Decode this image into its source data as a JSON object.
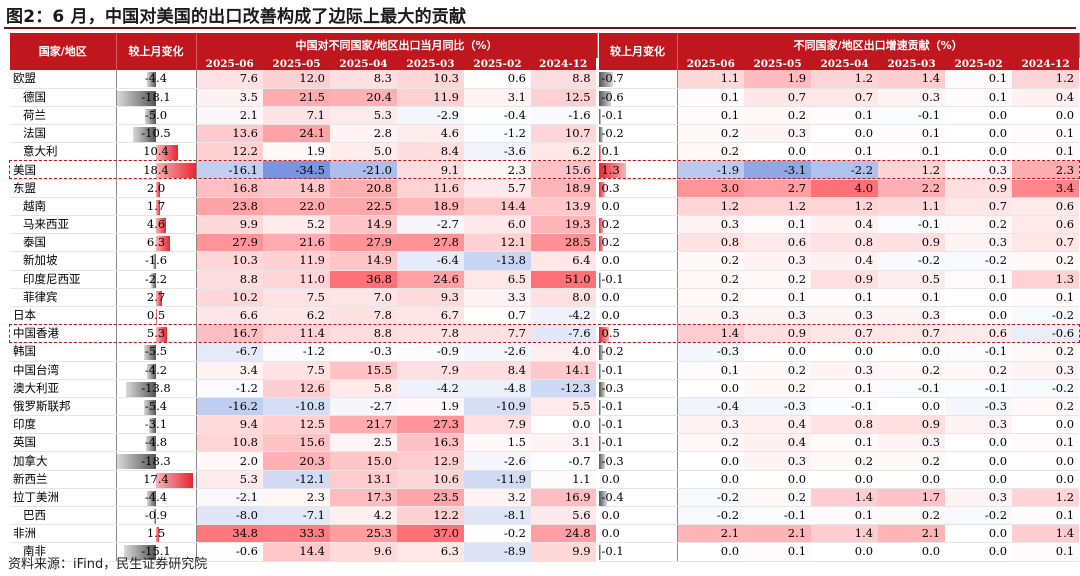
{
  "title": "图2：6 月，中国对美国的出口改善构成了边际上最大的贡献",
  "source": "资料来源：iFind，民生证券研究院",
  "header": {
    "region_col": "国家/地区",
    "change_col_left": "较上月变化",
    "group_left": "中国对不同国家/地区出口当月同比（%）",
    "change_col_right": "较上月变化",
    "group_right": "不同国家/地区出口增速贡献（%）",
    "dates": [
      "2025-06",
      "2025-05",
      "2025-04",
      "2025-03",
      "2025-02",
      "2024-12"
    ]
  },
  "colors": {
    "accent": "#c0161e",
    "pos": "#f4a3a6",
    "neg": "#9fb5dd"
  },
  "rows": [
    {
      "name": "欧盟",
      "sub": false,
      "chg": "-4.4",
      "yoy": [
        "7.6",
        "12.0",
        "8.3",
        "10.3",
        "0.6",
        "8.8"
      ],
      "chg2": "-0.7",
      "ctr": [
        "1.1",
        "1.9",
        "1.2",
        "1.4",
        "0.1",
        "1.2"
      ]
    },
    {
      "name": "德国",
      "sub": true,
      "chg": "-18.1",
      "yoy": [
        "3.5",
        "21.5",
        "20.4",
        "11.9",
        "3.1",
        "12.5"
      ],
      "chg2": "-0.6",
      "ctr": [
        "0.1",
        "0.7",
        "0.7",
        "0.3",
        "0.1",
        "0.4"
      ]
    },
    {
      "name": "荷兰",
      "sub": true,
      "chg": "-5.0",
      "yoy": [
        "2.1",
        "7.1",
        "5.3",
        "-2.9",
        "-0.4",
        "-1.6"
      ],
      "chg2": "-0.1",
      "ctr": [
        "0.1",
        "0.2",
        "0.1",
        "-0.1",
        "0.0",
        "0.0"
      ]
    },
    {
      "name": "法国",
      "sub": true,
      "chg": "-10.5",
      "yoy": [
        "13.6",
        "24.1",
        "2.8",
        "4.6",
        "-1.2",
        "10.7"
      ],
      "chg2": "-0.2",
      "ctr": [
        "0.2",
        "0.3",
        "0.0",
        "0.1",
        "0.0",
        "0.1"
      ]
    },
    {
      "name": "意大利",
      "sub": true,
      "chg": "10.4",
      "yoy": [
        "12.2",
        "1.9",
        "5.0",
        "8.4",
        "-3.6",
        "6.2"
      ],
      "chg2": "0.1",
      "ctr": [
        "0.2",
        "0.0",
        "0.1",
        "0.1",
        "0.0",
        "0.1"
      ]
    },
    {
      "name": "美国",
      "sub": false,
      "hl": true,
      "chg": "18.4",
      "yoy": [
        "-16.1",
        "-34.5",
        "-21.0",
        "9.1",
        "2.3",
        "15.6"
      ],
      "chg2": "1.3",
      "ctr": [
        "-1.9",
        "-3.1",
        "-2.2",
        "1.2",
        "0.3",
        "2.3"
      ]
    },
    {
      "name": "东盟",
      "sub": false,
      "chg": "2.0",
      "yoy": [
        "16.8",
        "14.8",
        "20.8",
        "11.6",
        "5.7",
        "18.9"
      ],
      "chg2": "0.3",
      "ctr": [
        "3.0",
        "2.7",
        "4.0",
        "2.2",
        "0.9",
        "3.4"
      ]
    },
    {
      "name": "越南",
      "sub": true,
      "chg": "1.7",
      "yoy": [
        "23.8",
        "22.0",
        "22.5",
        "18.9",
        "14.4",
        "13.9"
      ],
      "chg2": "0.0",
      "ctr": [
        "1.2",
        "1.2",
        "1.2",
        "1.1",
        "0.7",
        "0.6"
      ]
    },
    {
      "name": "马来西亚",
      "sub": true,
      "chg": "4.6",
      "yoy": [
        "9.9",
        "5.2",
        "14.9",
        "-2.7",
        "6.0",
        "19.3"
      ],
      "chg2": "0.2",
      "ctr": [
        "0.3",
        "0.1",
        "0.4",
        "-0.1",
        "0.2",
        "0.6"
      ]
    },
    {
      "name": "泰国",
      "sub": true,
      "chg": "6.3",
      "yoy": [
        "27.9",
        "21.6",
        "27.9",
        "27.8",
        "12.1",
        "28.5"
      ],
      "chg2": "0.2",
      "ctr": [
        "0.8",
        "0.6",
        "0.8",
        "0.9",
        "0.3",
        "0.7"
      ]
    },
    {
      "name": "新加坡",
      "sub": true,
      "chg": "-1.6",
      "yoy": [
        "10.3",
        "11.9",
        "14.9",
        "-6.4",
        "-13.8",
        "6.4"
      ],
      "chg2": "0.0",
      "ctr": [
        "0.2",
        "0.3",
        "0.4",
        "-0.2",
        "-0.2",
        "0.2"
      ]
    },
    {
      "name": "印度尼西亚",
      "sub": true,
      "chg": "-2.2",
      "yoy": [
        "8.8",
        "11.0",
        "36.8",
        "24.6",
        "6.5",
        "51.0"
      ],
      "chg2": "-0.1",
      "ctr": [
        "0.2",
        "0.2",
        "0.9",
        "0.5",
        "0.1",
        "1.3"
      ]
    },
    {
      "name": "菲律宾",
      "sub": true,
      "chg": "2.7",
      "yoy": [
        "10.2",
        "7.5",
        "7.0",
        "9.3",
        "3.3",
        "8.0"
      ],
      "chg2": "0.0",
      "ctr": [
        "0.2",
        "0.1",
        "0.1",
        "0.1",
        "0.0",
        "0.1"
      ]
    },
    {
      "name": "日本",
      "sub": false,
      "chg": "0.5",
      "yoy": [
        "6.6",
        "6.2",
        "7.8",
        "6.7",
        "0.7",
        "-4.2"
      ],
      "chg2": "0.0",
      "ctr": [
        "0.3",
        "0.3",
        "0.3",
        "0.3",
        "0.0",
        "-0.2"
      ]
    },
    {
      "name": "中国香港",
      "sub": false,
      "hl": true,
      "chg": "5.3",
      "yoy": [
        "16.7",
        "11.4",
        "8.8",
        "7.8",
        "7.7",
        "-7.6"
      ],
      "chg2": "0.5",
      "ctr": [
        "1.4",
        "0.9",
        "0.7",
        "0.7",
        "0.6",
        "-0.6"
      ]
    },
    {
      "name": "韩国",
      "sub": false,
      "chg": "-5.5",
      "yoy": [
        "-6.7",
        "-1.2",
        "-0.3",
        "-0.9",
        "-2.6",
        "4.0"
      ],
      "chg2": "-0.2",
      "ctr": [
        "-0.3",
        "0.0",
        "0.0",
        "0.0",
        "-0.1",
        "0.2"
      ]
    },
    {
      "name": "中国台湾",
      "sub": false,
      "chg": "-4.2",
      "yoy": [
        "3.4",
        "7.5",
        "15.5",
        "7.9",
        "8.4",
        "14.1"
      ],
      "chg2": "-0.1",
      "ctr": [
        "0.1",
        "0.2",
        "0.3",
        "0.2",
        "0.2",
        "0.3"
      ]
    },
    {
      "name": "澳大利亚",
      "sub": false,
      "chg": "-13.8",
      "yoy": [
        "-1.2",
        "12.6",
        "5.8",
        "-4.2",
        "-4.8",
        "-12.3"
      ],
      "chg2": "-0.3",
      "ctr": [
        "0.0",
        "0.2",
        "0.1",
        "-0.1",
        "-0.1",
        "-0.2"
      ]
    },
    {
      "name": "俄罗斯联邦",
      "sub": false,
      "chg": "-5.4",
      "yoy": [
        "-16.2",
        "-10.8",
        "-2.7",
        "1.9",
        "-10.9",
        "5.5"
      ],
      "chg2": "-0.1",
      "ctr": [
        "-0.4",
        "-0.3",
        "-0.1",
        "0.0",
        "-0.3",
        "0.2"
      ]
    },
    {
      "name": "印度",
      "sub": false,
      "chg": "-3.1",
      "yoy": [
        "9.4",
        "12.5",
        "21.7",
        "27.3",
        "7.9",
        "0.0"
      ],
      "chg2": "-0.1",
      "ctr": [
        "0.3",
        "0.4",
        "0.8",
        "0.9",
        "0.3",
        "0.0"
      ]
    },
    {
      "name": "英国",
      "sub": false,
      "chg": "-4.8",
      "yoy": [
        "10.8",
        "15.6",
        "2.5",
        "16.3",
        "1.5",
        "3.1"
      ],
      "chg2": "-0.1",
      "ctr": [
        "0.2",
        "0.4",
        "0.1",
        "0.3",
        "0.0",
        "0.1"
      ]
    },
    {
      "name": "加拿大",
      "sub": false,
      "chg": "-18.3",
      "yoy": [
        "2.0",
        "20.3",
        "15.0",
        "12.9",
        "-2.6",
        "-0.7"
      ],
      "chg2": "-0.3",
      "ctr": [
        "0.0",
        "0.3",
        "0.2",
        "0.2",
        "0.0",
        "0.0"
      ]
    },
    {
      "name": "新西兰",
      "sub": false,
      "chg": "17.4",
      "yoy": [
        "5.3",
        "-12.1",
        "13.1",
        "10.6",
        "-11.9",
        "1.1"
      ],
      "chg2": "0.0",
      "ctr": [
        "0.0",
        "0.0",
        "0.0",
        "0.0",
        "0.0",
        "0.0"
      ]
    },
    {
      "name": "拉丁美洲",
      "sub": false,
      "chg": "-4.4",
      "yoy": [
        "-2.1",
        "2.3",
        "17.3",
        "23.5",
        "3.2",
        "16.9"
      ],
      "chg2": "-0.4",
      "ctr": [
        "-0.2",
        "0.2",
        "1.4",
        "1.7",
        "0.3",
        "1.2"
      ]
    },
    {
      "name": "巴西",
      "sub": true,
      "chg": "-0.9",
      "yoy": [
        "-8.0",
        "-7.1",
        "4.2",
        "12.2",
        "-8.1",
        "5.6"
      ],
      "chg2": "0.0",
      "ctr": [
        "-0.2",
        "-0.1",
        "0.1",
        "0.2",
        "-0.2",
        "0.1"
      ]
    },
    {
      "name": "非洲",
      "sub": false,
      "chg": "1.5",
      "yoy": [
        "34.8",
        "33.3",
        "25.3",
        "37.0",
        "-0.2",
        "24.8"
      ],
      "chg2": "0.0",
      "ctr": [
        "2.1",
        "2.1",
        "1.4",
        "2.1",
        "0.0",
        "1.4"
      ]
    },
    {
      "name": "南非",
      "sub": true,
      "chg": "-15.1",
      "yoy": [
        "-0.6",
        "14.4",
        "9.6",
        "6.3",
        "-8.9",
        "9.9"
      ],
      "chg2": "-0.1",
      "ctr": [
        "0.0",
        "0.1",
        "0.0",
        "0.0",
        "0.0",
        "0.1"
      ]
    }
  ]
}
